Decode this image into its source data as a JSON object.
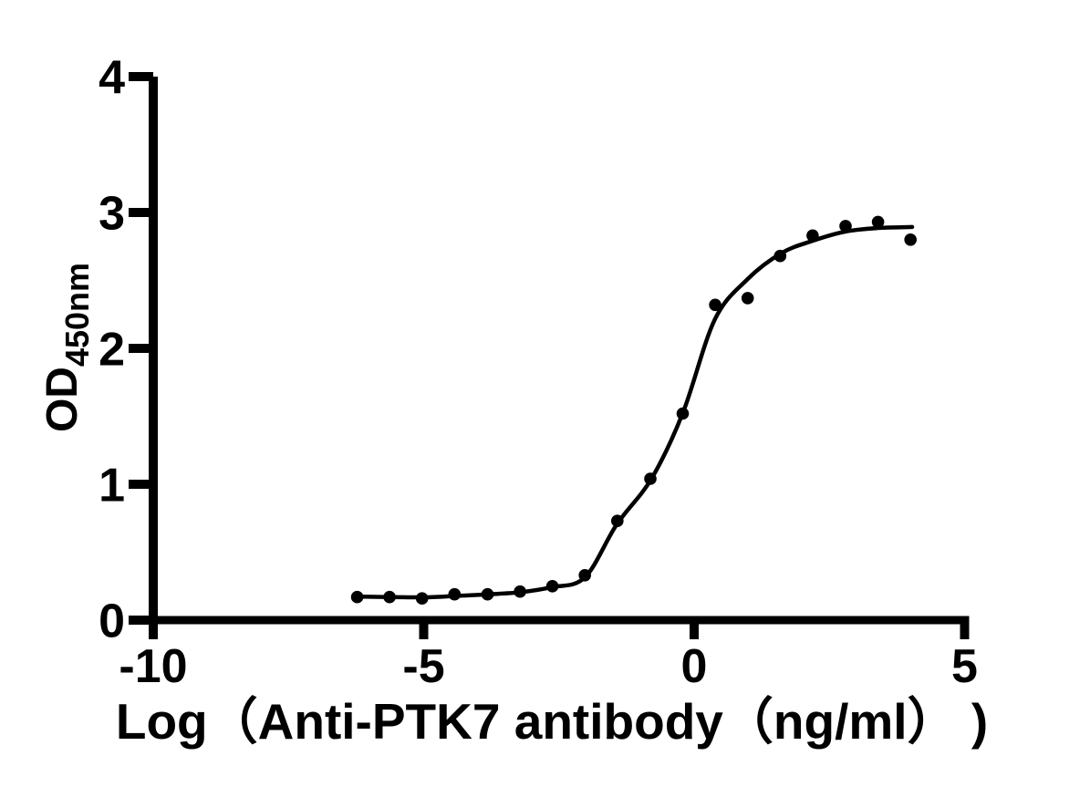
{
  "figure": {
    "background_color": "#ffffff",
    "ink_color": "#000000"
  },
  "chart_data": {
    "type": "scatter",
    "xlabel": "Log（Anti-PTK7 antibody（ng/ml） )",
    "ylabel_main": "OD",
    "ylabel_sub": "450nm",
    "xlim": [
      -10,
      5
    ],
    "ylim": [
      0,
      4
    ],
    "x_ticks": [
      -10,
      -5,
      0,
      5
    ],
    "y_ticks": [
      0,
      1,
      2,
      3,
      4
    ],
    "grid": false,
    "legend": "none",
    "marker_color": "#000000",
    "curve_color": "#000000",
    "series": [
      {
        "marker": "circle",
        "x": [
          -6.23,
          -5.63,
          -5.03,
          -4.43,
          -3.82,
          -3.22,
          -2.62,
          -2.02,
          -1.42,
          -0.81,
          -0.21,
          0.39,
          0.99,
          1.59,
          2.19,
          2.8,
          3.4,
          4.0
        ],
        "y": [
          0.17,
          0.17,
          0.16,
          0.19,
          0.19,
          0.21,
          0.25,
          0.33,
          0.73,
          1.04,
          1.52,
          2.32,
          2.37,
          2.68,
          2.83,
          2.9,
          2.93,
          2.8
        ]
      }
    ],
    "fit_curve": {
      "type": "sigmoid-4PL",
      "x": [
        -6.3,
        -5.6,
        -5.0,
        -4.4,
        -3.8,
        -3.2,
        -2.64,
        -2.02,
        -1.43,
        -0.79,
        -0.21,
        0.38,
        0.99,
        1.61,
        2.18,
        2.8,
        3.4,
        4.03
      ],
      "y": [
        0.174,
        0.17,
        0.168,
        0.178,
        0.19,
        0.206,
        0.242,
        0.315,
        0.705,
        1.04,
        1.523,
        2.21,
        2.51,
        2.7,
        2.79,
        2.86,
        2.886,
        2.893
      ]
    }
  }
}
